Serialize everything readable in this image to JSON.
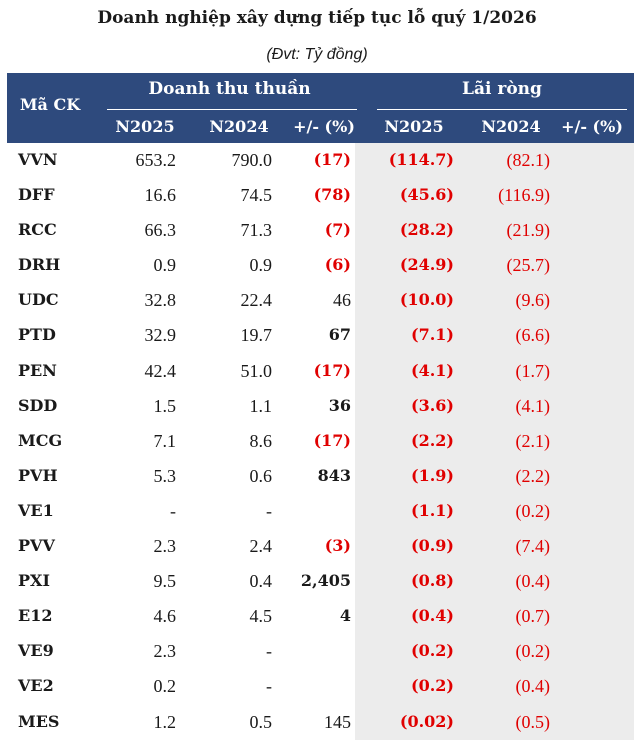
{
  "title": "Doanh nghiệp xây dựng tiếp tục lỗ quý 1/2026",
  "subtitle": "(Đvt: Tỷ đồng)",
  "header": {
    "code_label": "Mã CK",
    "revenue_group": "Doanh thu thuần",
    "profit_group": "Lãi ròng",
    "rev_n2025": "N2025",
    "rev_n2024": "N2024",
    "rev_change": "+/- (%)",
    "prof_n2025": "N2025",
    "prof_n2024": "N2024",
    "prof_change": "+/- (%)"
  },
  "rows": [
    {
      "code": "VVN",
      "rev25": "653.2",
      "rev24": "790.0",
      "chg": "(17)",
      "chg_neg": true,
      "chg_bold": true,
      "p25": "(114.7)",
      "p24": "(82.1)"
    },
    {
      "code": "DFF",
      "rev25": "16.6",
      "rev24": "74.5",
      "chg": "(78)",
      "chg_neg": true,
      "chg_bold": true,
      "p25": "(45.6)",
      "p24": "(116.9)"
    },
    {
      "code": "RCC",
      "rev25": "66.3",
      "rev24": "71.3",
      "chg": "(7)",
      "chg_neg": true,
      "chg_bold": true,
      "p25": "(28.2)",
      "p24": "(21.9)"
    },
    {
      "code": "DRH",
      "rev25": "0.9",
      "rev24": "0.9",
      "chg": "(6)",
      "chg_neg": true,
      "chg_bold": true,
      "p25": "(24.9)",
      "p24": "(25.7)"
    },
    {
      "code": "UDC",
      "rev25": "32.8",
      "rev24": "22.4",
      "chg": "46",
      "chg_neg": false,
      "chg_bold": false,
      "p25": "(10.0)",
      "p24": "(9.6)"
    },
    {
      "code": "PTD",
      "rev25": "32.9",
      "rev24": "19.7",
      "chg": "67",
      "chg_neg": false,
      "chg_bold": true,
      "p25": "(7.1)",
      "p24": "(6.6)"
    },
    {
      "code": "PEN",
      "rev25": "42.4",
      "rev24": "51.0",
      "chg": "(17)",
      "chg_neg": true,
      "chg_bold": true,
      "p25": "(4.1)",
      "p24": "(1.7)"
    },
    {
      "code": "SDD",
      "rev25": "1.5",
      "rev24": "1.1",
      "chg": "36",
      "chg_neg": false,
      "chg_bold": true,
      "p25": "(3.6)",
      "p24": "(4.1)"
    },
    {
      "code": "MCG",
      "rev25": "7.1",
      "rev24": "8.6",
      "chg": "(17)",
      "chg_neg": true,
      "chg_bold": true,
      "p25": "(2.2)",
      "p24": "(2.1)"
    },
    {
      "code": "PVH",
      "rev25": "5.3",
      "rev24": "0.6",
      "chg": "843",
      "chg_neg": false,
      "chg_bold": true,
      "p25": "(1.9)",
      "p24": "(2.2)"
    },
    {
      "code": "VE1",
      "rev25": "-",
      "rev24": "-",
      "chg": "",
      "chg_neg": false,
      "chg_bold": true,
      "p25": "(1.1)",
      "p24": "(0.2)"
    },
    {
      "code": "PVV",
      "rev25": "2.3",
      "rev24": "2.4",
      "chg": "(3)",
      "chg_neg": true,
      "chg_bold": true,
      "p25": "(0.9)",
      "p24": "(7.4)"
    },
    {
      "code": "PXI",
      "rev25": "9.5",
      "rev24": "0.4",
      "chg": "2,405",
      "chg_neg": false,
      "chg_bold": true,
      "p25": "(0.8)",
      "p24": "(0.4)"
    },
    {
      "code": "E12",
      "rev25": "4.6",
      "rev24": "4.5",
      "chg": "4",
      "chg_neg": false,
      "chg_bold": true,
      "p25": "(0.4)",
      "p24": "(0.7)"
    },
    {
      "code": "VE9",
      "rev25": "2.3",
      "rev24": "-",
      "chg": "",
      "chg_neg": false,
      "chg_bold": true,
      "p25": "(0.2)",
      "p24": "(0.2)"
    },
    {
      "code": "VE2",
      "rev25": "0.2",
      "rev24": "-",
      "chg": "",
      "chg_neg": false,
      "chg_bold": true,
      "p25": "(0.2)",
      "p24": "(0.4)"
    },
    {
      "code": "MES",
      "rev25": "1.2",
      "rev24": "0.5",
      "chg": "145",
      "chg_neg": false,
      "chg_bold": false,
      "p25": "(0.02)",
      "p24": "(0.5)"
    }
  ],
  "colors": {
    "header_bg": "#2e4a7d",
    "negative": "#e00000",
    "profit_shade": "#ececec"
  }
}
